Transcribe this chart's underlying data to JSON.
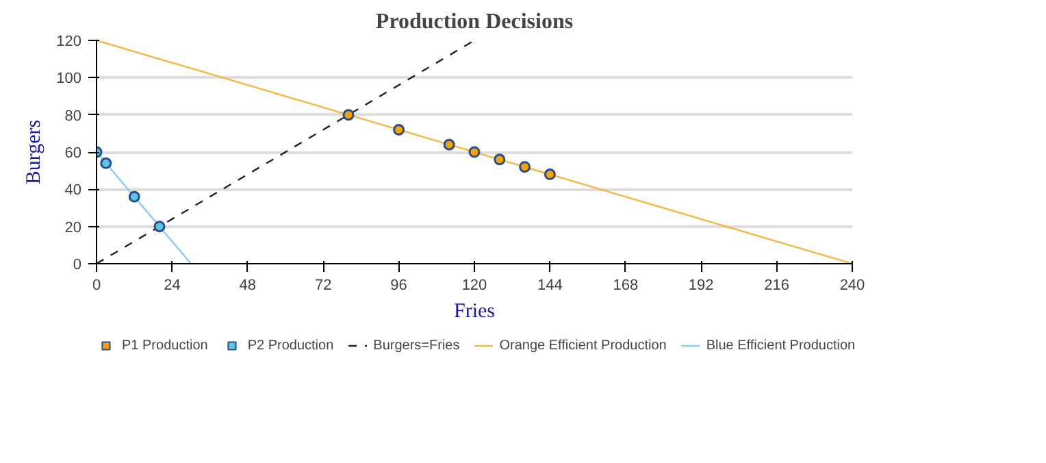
{
  "chart_data": {
    "type": "scatter",
    "title": "Production Decisions",
    "xlabel": "Fries",
    "ylabel": "Burgers",
    "xlim": [
      0,
      240
    ],
    "xticks": [
      0,
      24,
      48,
      72,
      96,
      120,
      144,
      168,
      192,
      216,
      240
    ],
    "ylim": [
      0,
      120
    ],
    "yticks": [
      0,
      20,
      40,
      60,
      80,
      100,
      120
    ],
    "grid": "y",
    "legend": "bottom",
    "series": [
      {
        "name": "P1 Production",
        "marker": "circle",
        "color": "#f5a300",
        "x": [
          80,
          96,
          112,
          120,
          128,
          136,
          144
        ],
        "values": [
          80,
          72,
          64,
          60,
          56,
          52,
          48
        ]
      },
      {
        "name": "P2 Production",
        "marker": "circle",
        "color": "#5bc8e0",
        "x": [
          0,
          3,
          12,
          20
        ],
        "values": [
          60,
          54,
          36,
          20
        ]
      },
      {
        "name": "Burgers=Fries",
        "type": "line",
        "line_style": "dashed",
        "color": "#222222",
        "x": [
          0,
          120
        ],
        "values": [
          0,
          120
        ]
      },
      {
        "name": "Orange Efficient Production",
        "type": "line",
        "line_style": "solid",
        "color": "#f5b942",
        "x": [
          0,
          240
        ],
        "values": [
          120,
          0
        ]
      },
      {
        "name": "Blue Efficient Production",
        "type": "line",
        "line_style": "solid",
        "color": "#87cefa",
        "x": [
          0,
          30
        ],
        "values": [
          60,
          0
        ]
      }
    ]
  }
}
